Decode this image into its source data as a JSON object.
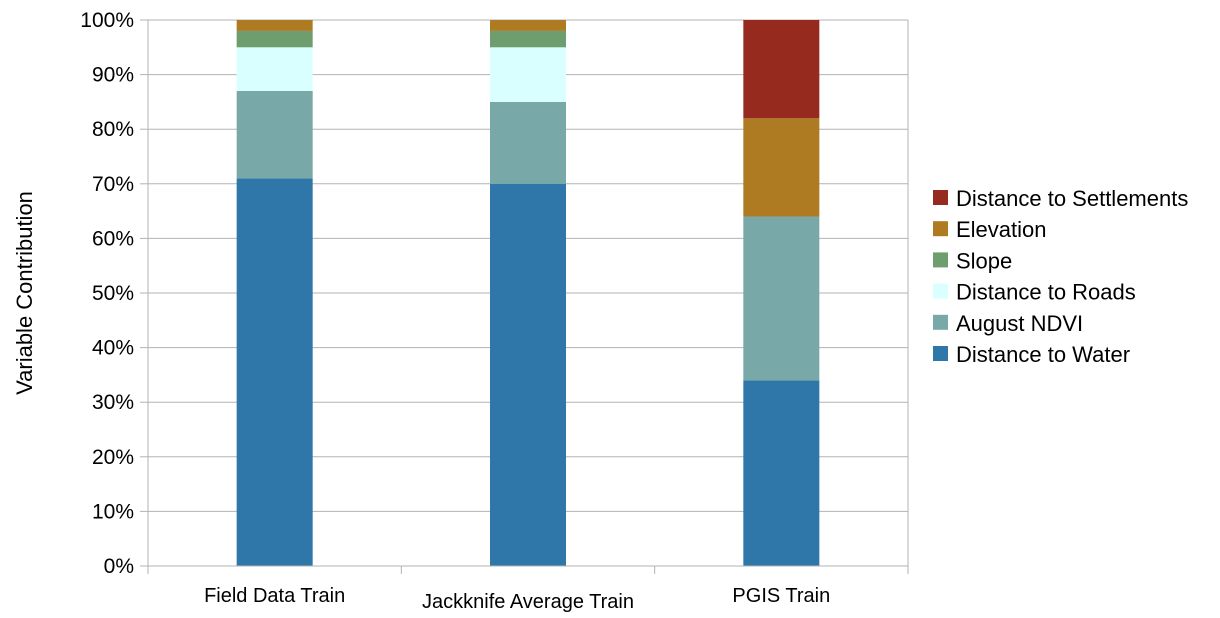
{
  "chart_data": {
    "type": "bar",
    "stacked": true,
    "percent": true,
    "title": "",
    "xlabel": "",
    "ylabel": "Variable Contribution",
    "ylim": [
      0,
      100
    ],
    "yticks": [
      "0%",
      "10%",
      "20%",
      "30%",
      "40%",
      "50%",
      "60%",
      "70%",
      "80%",
      "90%",
      "100%"
    ],
    "categories": [
      "Field Data Train",
      "Jackknife Average Train",
      "PGIS Train"
    ],
    "series": [
      {
        "name": "Distance to Water",
        "color": "#2E77A8",
        "values": [
          71,
          70,
          34
        ]
      },
      {
        "name": "August NDVI",
        "color": "#78A8A8",
        "values": [
          16,
          15,
          30
        ]
      },
      {
        "name": "Distance to Roads",
        "color": "#D9FFFF",
        "values": [
          8,
          10,
          0
        ]
      },
      {
        "name": "Slope",
        "color": "#6E9E6E",
        "values": [
          3,
          3,
          0
        ]
      },
      {
        "name": "Elevation",
        "color": "#AE7A22",
        "values": [
          2,
          2,
          18
        ]
      },
      {
        "name": "Distance to Settlements",
        "color": "#962A1E",
        "values": [
          0,
          0,
          18
        ]
      }
    ],
    "grid": true,
    "legend_position": "right"
  }
}
